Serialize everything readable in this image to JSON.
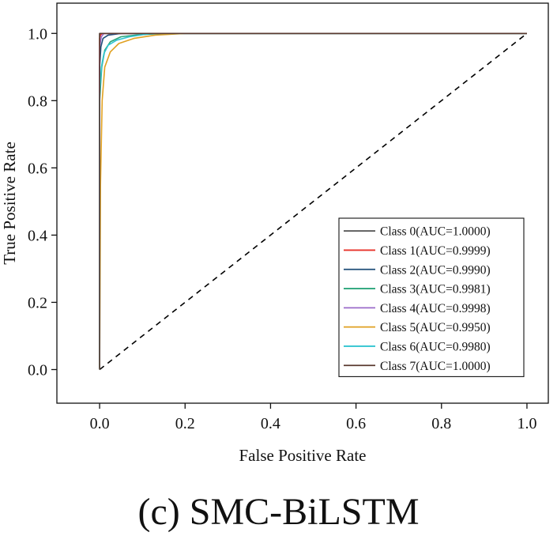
{
  "chart_data": {
    "type": "line",
    "xlabel": "False Positive Rate",
    "ylabel": "True Positive Rate",
    "xlim": [
      -0.1,
      1.05
    ],
    "ylim": [
      -0.1,
      1.09
    ],
    "xticks": [
      "0.0",
      "0.2",
      "0.4",
      "0.6",
      "0.8",
      "1.0"
    ],
    "yticks": [
      "0.0",
      "0.2",
      "0.4",
      "0.6",
      "0.8",
      "1.0"
    ],
    "grid": false,
    "legend_position": "bottom-right",
    "diagonal": {
      "x": [
        0,
        1
      ],
      "y": [
        0,
        1
      ],
      "style": "dashed",
      "color": "#000000"
    },
    "series": [
      {
        "name": "Class 0(AUC=1.0000)",
        "color": "#505050",
        "x": [
          0,
          0,
          1
        ],
        "y": [
          0,
          1.0,
          1.0
        ]
      },
      {
        "name": "Class 1(AUC=0.9999)",
        "color": "#e8332a",
        "x": [
          0,
          0,
          0.002,
          0.006,
          1
        ],
        "y": [
          0,
          0.985,
          0.995,
          1.0,
          1.0
        ]
      },
      {
        "name": "Class 2(AUC=0.9990)",
        "color": "#1f4e79",
        "x": [
          0,
          0,
          0.003,
          0.008,
          0.02,
          0.05,
          1
        ],
        "y": [
          0,
          0.9,
          0.96,
          0.985,
          0.995,
          1.0,
          1.0
        ]
      },
      {
        "name": "Class 3(AUC=0.9981)",
        "color": "#2aa57a",
        "x": [
          0,
          0,
          0.005,
          0.012,
          0.025,
          0.05,
          0.09,
          0.15,
          1
        ],
        "y": [
          0,
          0.8,
          0.9,
          0.95,
          0.975,
          0.99,
          0.996,
          1.0,
          1.0
        ]
      },
      {
        "name": "Class 4(AUC=0.9998)",
        "color": "#9b6bc9",
        "x": [
          0,
          0,
          0.004,
          0.01,
          1
        ],
        "y": [
          0,
          0.96,
          0.99,
          1.0,
          1.0
        ]
      },
      {
        "name": "Class 5(AUC=0.9950)",
        "color": "#e0a020",
        "x": [
          0,
          0.002,
          0.006,
          0.012,
          0.025,
          0.045,
          0.08,
          0.13,
          0.2,
          1
        ],
        "y": [
          0,
          0.55,
          0.8,
          0.9,
          0.945,
          0.97,
          0.985,
          0.995,
          1.0,
          1.0
        ]
      },
      {
        "name": "Class 6(AUC=0.9980)",
        "color": "#30c4d0",
        "x": [
          0,
          0,
          0.004,
          0.01,
          0.02,
          0.04,
          0.07,
          0.12,
          1
        ],
        "y": [
          0,
          0.82,
          0.9,
          0.94,
          0.965,
          0.98,
          0.99,
          1.0,
          1.0
        ]
      },
      {
        "name": "Class 7(AUC=1.0000)",
        "color": "#5a3a30",
        "x": [
          0,
          0,
          1
        ],
        "y": [
          0,
          1.0,
          1.0
        ]
      }
    ]
  },
  "caption": "(c) SMC-BiLSTM"
}
